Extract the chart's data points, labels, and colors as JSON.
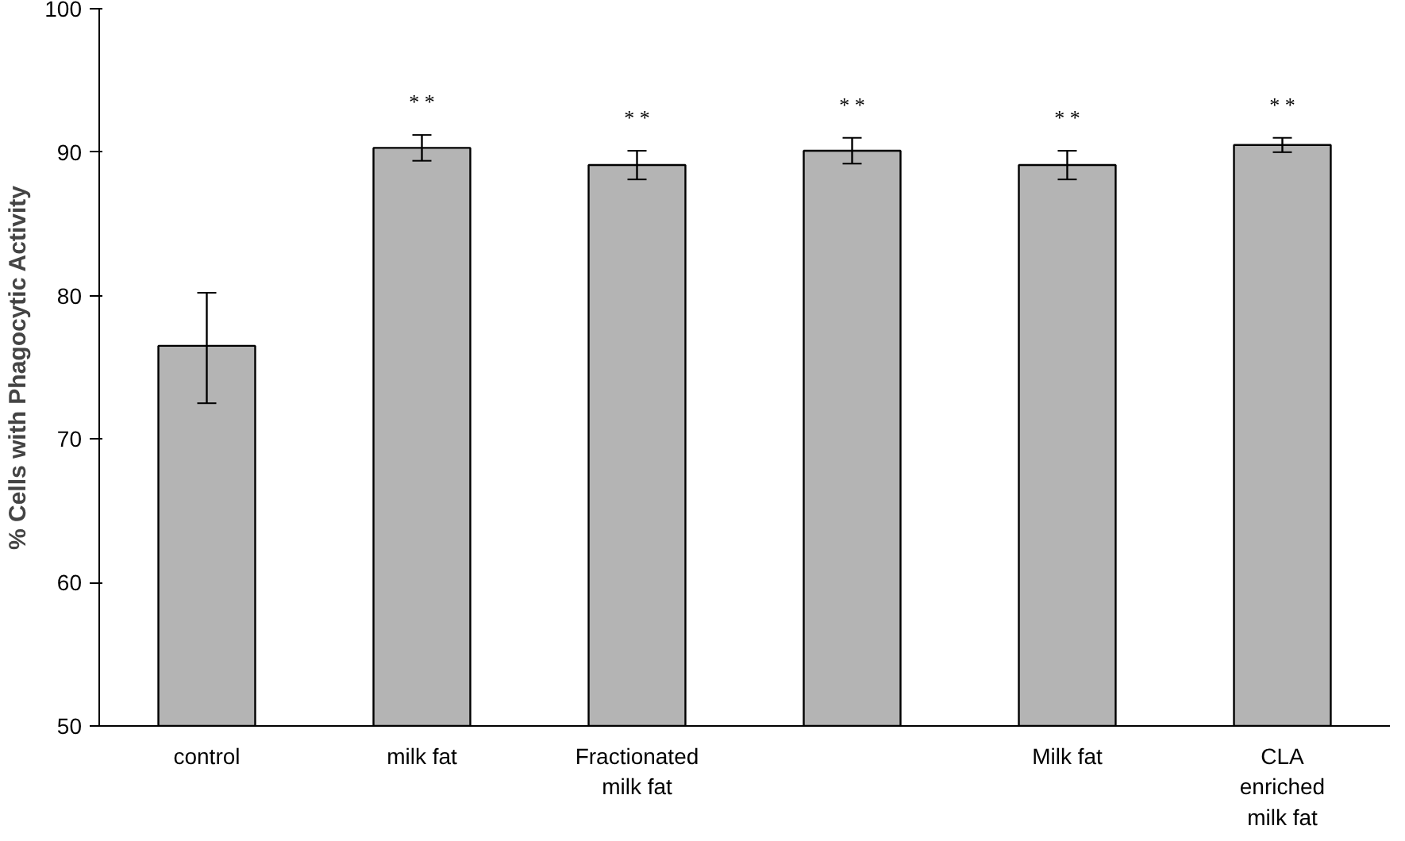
{
  "chart_data": {
    "type": "bar",
    "ylabel": "% Cells with Phagocytic Activity",
    "categories": [
      "control",
      "milk fat",
      "Fractionated milk fat",
      null,
      "Milk fat",
      "CLA enriched milk fat"
    ],
    "values": [
      76.5,
      90.3,
      89.1,
      90.1,
      89.1,
      90.5
    ],
    "errors": [
      [
        72.5,
        80.2
      ],
      0.9,
      1.0,
      0.9,
      1.0,
      0.5
    ],
    "value_labels": [
      null,
      "* *",
      "* *",
      "* *",
      "* *",
      "* *"
    ],
    "color": "#b4b4b4",
    "ylim": [
      50,
      100
    ],
    "yticks": [
      50,
      60,
      70,
      80,
      90,
      100
    ],
    "grid": false
  }
}
